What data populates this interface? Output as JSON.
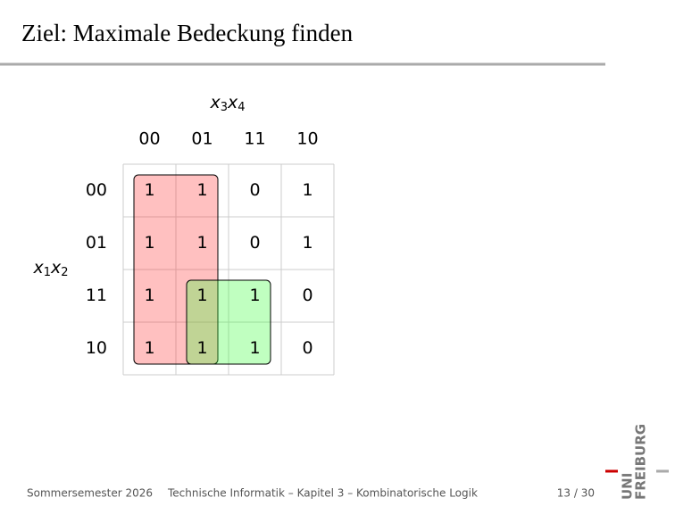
{
  "title": "Ziel: Maximale Bedeckung finden",
  "kmap": {
    "col_vars": [
      {
        "base": "x",
        "sub": "3"
      },
      {
        "base": "x",
        "sub": "4"
      }
    ],
    "row_vars": [
      {
        "base": "x",
        "sub": "1"
      },
      {
        "base": "x",
        "sub": "2"
      }
    ],
    "col_headers": [
      "00",
      "01",
      "11",
      "10"
    ],
    "row_headers": [
      "00",
      "01",
      "11",
      "10"
    ],
    "cells": [
      [
        "1",
        "1",
        "0",
        "1"
      ],
      [
        "1",
        "1",
        "0",
        "1"
      ],
      [
        "1",
        "1",
        "1",
        "0"
      ],
      [
        "1",
        "1",
        "1",
        "0"
      ]
    ]
  },
  "footer": {
    "left": "Sommersemester 2026",
    "center": "Technische Informatik – Kapitel 3 – Kombinatorische Logik",
    "right": "13 / 30"
  },
  "logo": {
    "line1": "UNI",
    "line2": "FREIBURG"
  }
}
